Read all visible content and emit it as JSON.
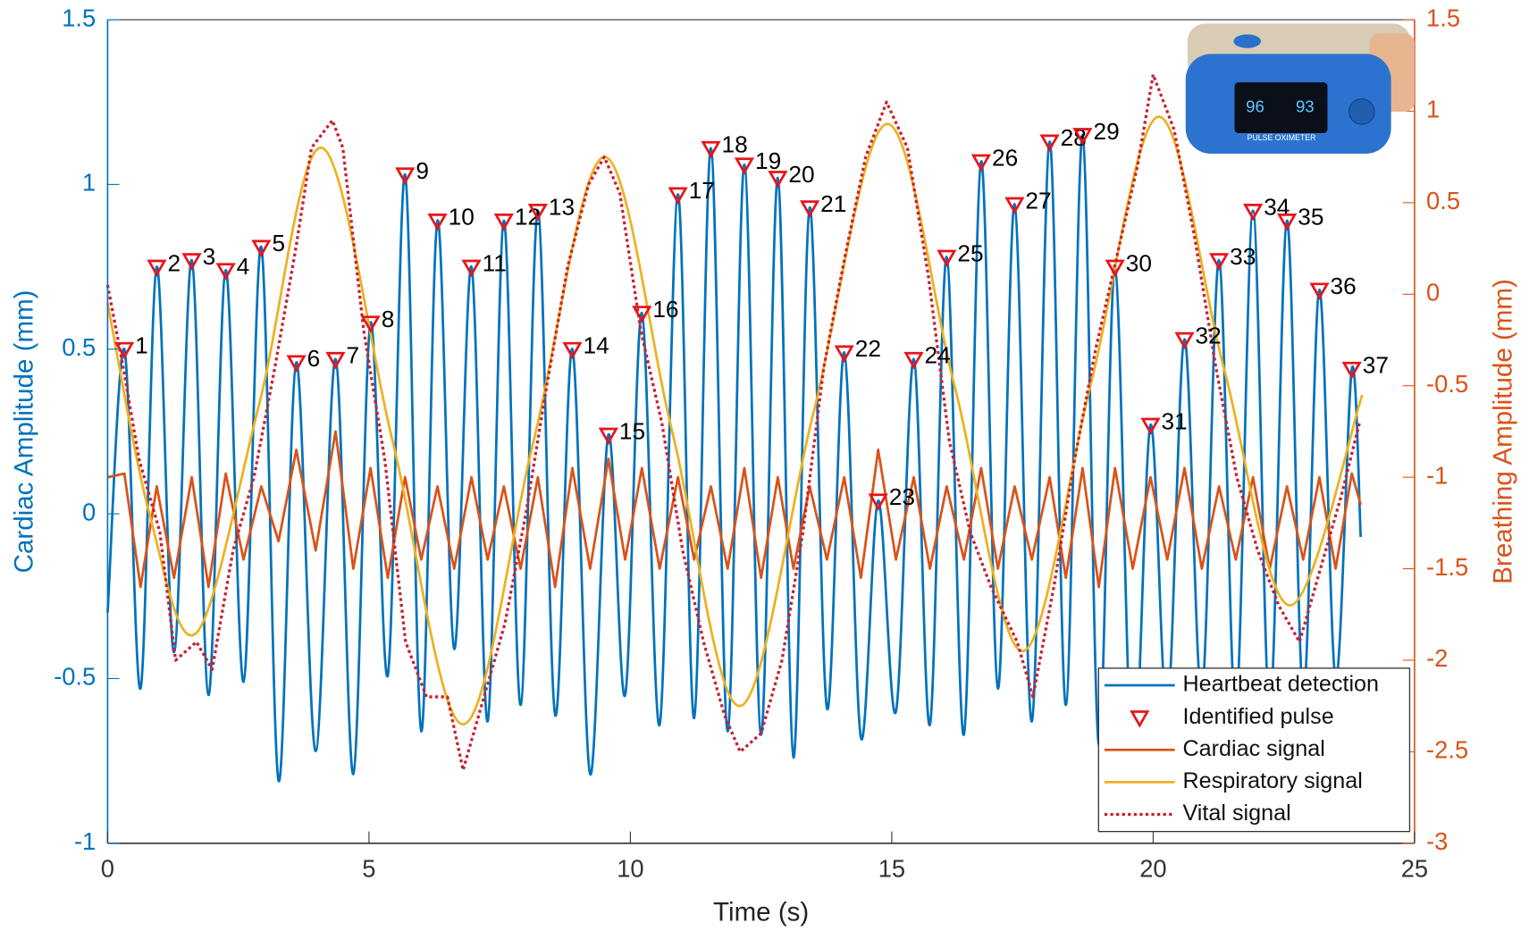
{
  "chart_data": {
    "type": "line",
    "xlabel": "Time (s)",
    "ylabel": "Cardiac Amplitude (mm)",
    "y2label": "Breathing Amplitude (mm)",
    "xlim": [
      0,
      25
    ],
    "xticks": [
      0,
      5,
      10,
      15,
      20,
      25
    ],
    "ylim": [
      -1,
      1.5
    ],
    "yticks": [
      -1,
      -0.5,
      0,
      0.5,
      1,
      1.5
    ],
    "y2lim": [
      -3,
      1.5
    ],
    "y2ticks": [
      -3,
      -2.5,
      -2,
      -1.5,
      -1,
      -0.5,
      0,
      0.5,
      1,
      1.5
    ],
    "ycolor": "#0072bd",
    "y2color": "#d95319",
    "legend": "lower right",
    "series": [
      {
        "name": "Heartbeat detection",
        "color": "#0072bd",
        "style": "smooth",
        "x": [
          0,
          0.32,
          0.63,
          0.94,
          1.27,
          1.61,
          1.93,
          2.26,
          2.6,
          2.94,
          3.27,
          3.61,
          3.98,
          4.36,
          4.7,
          5.03,
          5.36,
          5.69,
          6.0,
          6.31,
          6.63,
          6.96,
          7.27,
          7.58,
          7.9,
          8.23,
          8.56,
          8.89,
          9.23,
          9.58,
          9.9,
          10.22,
          10.56,
          10.91,
          11.22,
          11.54,
          11.86,
          12.18,
          12.5,
          12.82,
          13.12,
          13.43,
          13.76,
          14.09,
          14.41,
          14.74,
          15.08,
          15.42,
          15.73,
          16.05,
          16.38,
          16.71,
          17.03,
          17.35,
          17.68,
          18.02,
          18.33,
          18.65,
          18.96,
          19.27,
          19.61,
          19.95,
          20.27,
          20.6,
          20.93,
          21.26,
          21.58,
          21.91,
          22.23,
          22.56,
          22.87,
          23.18,
          23.49,
          23.8,
          23.97
        ],
        "values": [
          -0.3,
          0.5,
          -0.53,
          0.75,
          -0.42,
          0.77,
          -0.55,
          0.74,
          -0.51,
          0.81,
          -0.81,
          0.46,
          -0.72,
          0.47,
          -0.79,
          0.58,
          -0.49,
          1.03,
          -0.66,
          0.89,
          -0.41,
          0.75,
          -0.63,
          0.89,
          -0.58,
          0.92,
          -0.61,
          0.5,
          -0.79,
          0.24,
          -0.55,
          0.61,
          -0.64,
          0.97,
          -0.62,
          1.11,
          -0.66,
          1.06,
          -0.67,
          1.02,
          -0.74,
          0.93,
          -0.59,
          0.49,
          -0.68,
          0.04,
          -0.6,
          0.47,
          -0.64,
          0.78,
          -0.67,
          1.07,
          -0.53,
          0.94,
          -0.63,
          1.13,
          -0.58,
          1.15,
          -0.7,
          0.75,
          -0.79,
          0.27,
          -0.6,
          0.53,
          -0.55,
          0.77,
          -0.6,
          0.92,
          -0.6,
          0.89,
          -0.55,
          0.68,
          -0.5,
          0.44,
          -0.07
        ]
      },
      {
        "name": "Identified pulse",
        "color": "#e8141b",
        "style": "marker",
        "x": [
          0.32,
          0.94,
          1.61,
          2.26,
          2.94,
          3.61,
          4.36,
          5.03,
          5.69,
          6.31,
          6.96,
          7.58,
          8.23,
          8.89,
          9.58,
          10.22,
          10.91,
          11.54,
          12.18,
          12.82,
          13.43,
          14.09,
          14.74,
          15.42,
          16.05,
          16.71,
          17.35,
          18.02,
          18.65,
          19.27,
          19.95,
          20.6,
          21.26,
          21.91,
          22.56,
          23.18,
          23.8
        ],
        "values": [
          0.5,
          0.75,
          0.77,
          0.74,
          0.81,
          0.46,
          0.47,
          0.58,
          1.03,
          0.89,
          0.75,
          0.89,
          0.92,
          0.5,
          0.24,
          0.61,
          0.97,
          1.11,
          1.06,
          1.02,
          0.93,
          0.49,
          0.04,
          0.47,
          0.78,
          1.07,
          0.94,
          1.13,
          1.15,
          0.75,
          0.27,
          0.53,
          0.77,
          0.92,
          0.89,
          0.68,
          0.44
        ],
        "labels": [
          "1",
          "2",
          "3",
          "4",
          "5",
          "6",
          "7",
          "8",
          "9",
          "10",
          "11",
          "12",
          "13",
          "14",
          "15",
          "16",
          "17",
          "18",
          "19",
          "20",
          "21",
          "22",
          "23",
          "24",
          "25",
          "26",
          "27",
          "28",
          "29",
          "30",
          "31",
          "32",
          "33",
          "34",
          "35",
          "36",
          "37"
        ]
      },
      {
        "name": "Cardiac signal",
        "color": "#d95319",
        "style": "line",
        "axis": "y2",
        "x": [
          0,
          0.32,
          0.63,
          0.94,
          1.27,
          1.61,
          1.93,
          2.26,
          2.6,
          2.94,
          3.27,
          3.61,
          3.98,
          4.36,
          4.7,
          5.03,
          5.36,
          5.69,
          6.0,
          6.31,
          6.63,
          6.96,
          7.27,
          7.58,
          7.9,
          8.23,
          8.56,
          8.89,
          9.23,
          9.58,
          9.9,
          10.22,
          10.56,
          10.91,
          11.22,
          11.54,
          11.86,
          12.18,
          12.5,
          12.82,
          13.12,
          13.43,
          13.76,
          14.09,
          14.41,
          14.74,
          15.08,
          15.42,
          15.73,
          16.05,
          16.38,
          16.71,
          17.03,
          17.35,
          17.68,
          18.02,
          18.33,
          18.65,
          18.96,
          19.27,
          19.61,
          19.95,
          20.27,
          20.6,
          20.93,
          21.26,
          21.58,
          21.91,
          22.23,
          22.56,
          22.87,
          23.18,
          23.49,
          23.8,
          23.97
        ],
        "values": [
          -1.0,
          -0.98,
          -1.6,
          -1.05,
          -1.55,
          -1.0,
          -1.6,
          -0.98,
          -1.45,
          -1.05,
          -1.35,
          -0.85,
          -1.4,
          -0.75,
          -1.5,
          -0.95,
          -1.55,
          -1.0,
          -1.45,
          -1.05,
          -1.5,
          -1.0,
          -1.45,
          -1.05,
          -1.5,
          -1.0,
          -1.6,
          -0.95,
          -1.5,
          -0.9,
          -1.45,
          -0.95,
          -1.5,
          -1.0,
          -1.45,
          -1.05,
          -1.5,
          -0.95,
          -1.55,
          -1.0,
          -1.5,
          -1.05,
          -1.45,
          -1.0,
          -1.55,
          -0.85,
          -1.45,
          -1.0,
          -1.5,
          -1.05,
          -1.45,
          -0.95,
          -1.5,
          -1.05,
          -1.45,
          -1.0,
          -1.55,
          -0.95,
          -1.6,
          -0.95,
          -1.5,
          -1.0,
          -1.45,
          -0.95,
          -1.5,
          -1.05,
          -1.45,
          -1.0,
          -1.5,
          -1.05,
          -1.45,
          -1.0,
          -1.5,
          -0.98,
          -1.15
        ]
      },
      {
        "name": "Respiratory signal",
        "color": "#edb120",
        "style": "smooth",
        "axis": "y2",
        "x": [
          0,
          0.8,
          1.7,
          2.9,
          4.1,
          5.45,
          6.8,
          8.15,
          9.5,
          10.8,
          12.1,
          13.5,
          14.9,
          16.2,
          17.5,
          18.8,
          20.1,
          21.35,
          22.6,
          24
        ],
        "values": [
          -0.05,
          -1.2,
          -1.85,
          -0.6,
          0.8,
          -0.8,
          -2.35,
          -0.8,
          0.75,
          -0.75,
          -2.25,
          -0.65,
          0.93,
          -0.5,
          -1.95,
          -0.5,
          0.97,
          -0.4,
          -1.7,
          -0.55
        ]
      },
      {
        "name": "Vital signal",
        "color": "#c8202f",
        "style": "dotted",
        "axis": "y2",
        "x": [
          0,
          0.3,
          0.6,
          1.0,
          1.3,
          1.7,
          2.0,
          2.4,
          2.8,
          3.2,
          3.6,
          3.9,
          4.3,
          4.5,
          4.9,
          5.3,
          5.7,
          6.1,
          6.5,
          6.8,
          7.2,
          7.6,
          8.0,
          8.4,
          8.8,
          9.2,
          9.5,
          9.8,
          10.2,
          10.6,
          11.0,
          11.4,
          11.8,
          12.1,
          12.5,
          12.9,
          13.3,
          13.7,
          14.1,
          14.5,
          14.9,
          15.3,
          15.7,
          16.1,
          16.5,
          16.9,
          17.4,
          17.7,
          18.1,
          18.5,
          18.9,
          19.3,
          19.7,
          20.0,
          20.4,
          20.8,
          21.2,
          21.6,
          22.0,
          22.4,
          22.8,
          23.2,
          23.6,
          23.95
        ],
        "values": [
          0.05,
          -0.4,
          -0.9,
          -1.3,
          -2.0,
          -1.9,
          -2.05,
          -1.4,
          -1.0,
          -0.4,
          0.25,
          0.8,
          0.95,
          0.8,
          -0.2,
          -0.9,
          -1.9,
          -2.2,
          -2.2,
          -2.6,
          -2.2,
          -1.8,
          -1.2,
          -0.5,
          0.15,
          0.6,
          0.75,
          0.55,
          -0.2,
          -0.7,
          -1.4,
          -1.9,
          -2.3,
          -2.5,
          -2.4,
          -2.0,
          -1.3,
          -0.4,
          0.2,
          0.75,
          1.05,
          0.8,
          0.1,
          -0.8,
          -1.3,
          -1.6,
          -1.9,
          -2.2,
          -1.6,
          -0.9,
          -0.3,
          0.2,
          0.7,
          1.2,
          0.9,
          0.3,
          -0.4,
          -1.0,
          -1.4,
          -1.7,
          -1.9,
          -1.5,
          -1.1,
          -0.7
        ]
      }
    ],
    "inset": {
      "spo2": "96",
      "pr": "93",
      "label": "PULSE OXIMETER"
    }
  }
}
